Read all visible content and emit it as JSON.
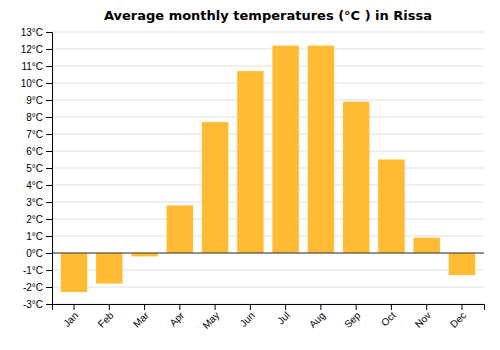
{
  "chart_data": {
    "type": "bar",
    "title": "Average monthly temperatures (°C ) in Rissa",
    "categories": [
      "Jan",
      "Feb",
      "Mar",
      "Apr",
      "May",
      "Jun",
      "Jul",
      "Aug",
      "Sep",
      "Oct",
      "Nov",
      "Dec"
    ],
    "values": [
      -2.3,
      -1.8,
      -0.2,
      2.8,
      7.7,
      10.7,
      12.2,
      12.2,
      8.9,
      5.5,
      0.9,
      -1.3
    ],
    "color": "#FFBB33",
    "ylim": [
      -3,
      13
    ],
    "yticks": [
      {
        "value": -3,
        "label": "-3°C"
      },
      {
        "value": -2,
        "label": "-2°C"
      },
      {
        "value": -1,
        "label": "-1°C"
      },
      {
        "value": 0,
        "label": "0°C"
      },
      {
        "value": 1,
        "label": "1°C"
      },
      {
        "value": 2,
        "label": "2°C"
      },
      {
        "value": 3,
        "label": "3°C"
      },
      {
        "value": 4,
        "label": "4°C"
      },
      {
        "value": 5,
        "label": "5°C"
      },
      {
        "value": 6,
        "label": "6°C"
      },
      {
        "value": 7,
        "label": "7°C"
      },
      {
        "value": 8,
        "label": "8°C"
      },
      {
        "value": 9,
        "label": "9°C"
      },
      {
        "value": 10,
        "label": "10°C"
      },
      {
        "value": 11,
        "label": "11°C"
      },
      {
        "value": 12,
        "label": "12°C"
      },
      {
        "value": 13,
        "label": "13°C"
      }
    ],
    "grid": true
  }
}
